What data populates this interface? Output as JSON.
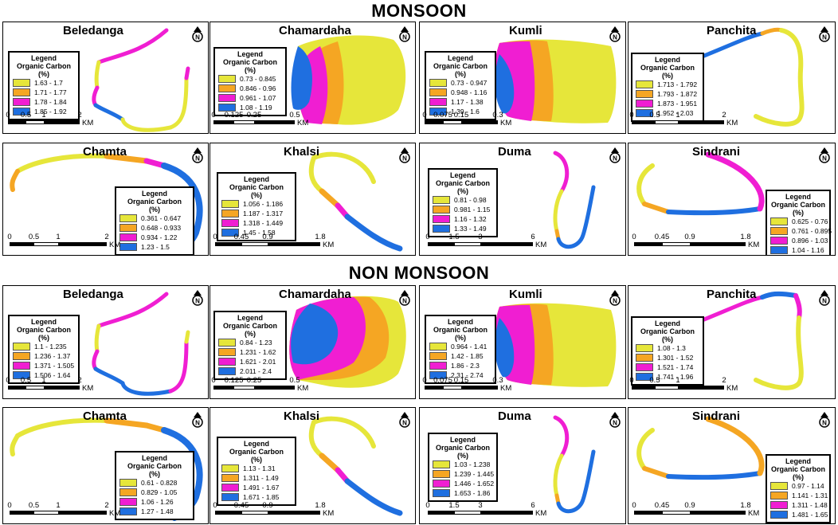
{
  "titles": {
    "monsoon": "MONSOON",
    "non_monsoon": "NON MONSOON"
  },
  "legend_title": "Legend",
  "legend_subtitle": "Organic Carbon",
  "legend_unit": "(%)",
  "unit_label": "KM",
  "north_label": "N",
  "class_colors": [
    "#e6e63a",
    "#f5a623",
    "#f01ed2",
    "#1f6fe0"
  ],
  "monsoon": [
    {
      "name": "Beledanga",
      "ranges": [
        "1.63 - 1.7",
        "1.71 - 1.77",
        "1.78 - 1.84",
        "1.85 - 1.92"
      ],
      "scale": [
        "0",
        "0.5",
        "1",
        "2"
      ]
    },
    {
      "name": "Chamardaha",
      "ranges": [
        "0.73 - 0.845",
        "0.846 - 0.96",
        "0.961 - 1.07",
        "1.08 - 1.19"
      ],
      "scale": [
        "0",
        "0.125",
        "0.25",
        "0.5"
      ]
    },
    {
      "name": "Kumli",
      "ranges": [
        "0.73 - 0.947",
        "0.948 - 1.16",
        "1.17 - 1.38",
        "1.39 - 1.6"
      ],
      "scale": [
        "0",
        "0.075",
        "0.15",
        "0.3"
      ]
    },
    {
      "name": "Panchita",
      "ranges": [
        "1.713 - 1.792",
        "1.793 - 1.872",
        "1.873 - 1.951",
        "1.952 - 2.03"
      ],
      "scale": [
        "0",
        "0.5",
        "1",
        "2"
      ]
    },
    {
      "name": "Chamta",
      "ranges": [
        "0.361 - 0.647",
        "0.648 - 0.933",
        "0.934 - 1.22",
        "1.23 - 1.5"
      ],
      "scale": [
        "0",
        "0.5",
        "1",
        "2"
      ]
    },
    {
      "name": "Khalsi",
      "ranges": [
        "1.056 - 1.186",
        "1.187 - 1.317",
        "1.318 - 1.449",
        "1.45 - 1.58"
      ],
      "scale": [
        "0",
        "0.45",
        "0.9",
        "1.8"
      ]
    },
    {
      "name": "Duma",
      "ranges": [
        "0.81 - 0.98",
        "0.981 - 1.15",
        "1.16 - 1.32",
        "1.33 - 1.49"
      ],
      "scale": [
        "0",
        "1.5",
        "3",
        "6"
      ]
    },
    {
      "name": "Sindrani",
      "ranges": [
        "0.625 - 0.76",
        "0.761 - 0.895",
        "0.896 - 1.03",
        "1.04 - 1.16"
      ],
      "scale": [
        "0",
        "0.45",
        "0.9",
        "1.8"
      ]
    }
  ],
  "non_monsoon": [
    {
      "name": "Beledanga",
      "ranges": [
        "1.1 - 1.235",
        "1.236 - 1.37",
        "1.371 - 1.505",
        "1.506 - 1.64"
      ],
      "scale": [
        "0",
        "0.5",
        "1",
        "2"
      ]
    },
    {
      "name": "Chamardaha",
      "ranges": [
        "0.84 - 1.23",
        "1.231 - 1.62",
        "1.621 - 2.01",
        "2.011 - 2.4"
      ],
      "scale": [
        "0",
        "0.125",
        "0.25",
        "0.5"
      ]
    },
    {
      "name": "Kumli",
      "ranges": [
        "0.964 - 1.41",
        "1.42 - 1.85",
        "1.86 - 2.3",
        "2.31 - 2.74"
      ],
      "scale": [
        "0",
        "0.075",
        "0.15",
        "0.3"
      ]
    },
    {
      "name": "Panchita",
      "ranges": [
        "1.08 - 1.3",
        "1.301 - 1.52",
        "1.521 - 1.74",
        "1.741 - 1.96"
      ],
      "scale": [
        "0",
        "0.5",
        "1",
        "2"
      ]
    },
    {
      "name": "Chamta",
      "ranges": [
        "0.61 - 0.828",
        "0.829 - 1.05",
        "1.06 - 1.26",
        "1.27 - 1.48"
      ],
      "scale": [
        "0",
        "0.5",
        "1",
        "2"
      ]
    },
    {
      "name": "Khalsi",
      "ranges": [
        "1.13 - 1.31",
        "1.311 - 1.49",
        "1.491 - 1.67",
        "1.671 - 1.85"
      ],
      "scale": [
        "0",
        "0.45",
        "0.9",
        "1.8"
      ]
    },
    {
      "name": "Duma",
      "ranges": [
        "1.03 - 1.238",
        "1.239 - 1.445",
        "1.446 - 1.652",
        "1.653 - 1.86"
      ],
      "scale": [
        "0",
        "1.5",
        "3",
        "6"
      ]
    },
    {
      "name": "Sindrani",
      "ranges": [
        "0.97 - 1.14",
        "1.141 - 1.31",
        "1.311 - 1.48",
        "1.481 - 1.65"
      ],
      "scale": [
        "0",
        "0.45",
        "0.9",
        "1.8"
      ]
    }
  ]
}
